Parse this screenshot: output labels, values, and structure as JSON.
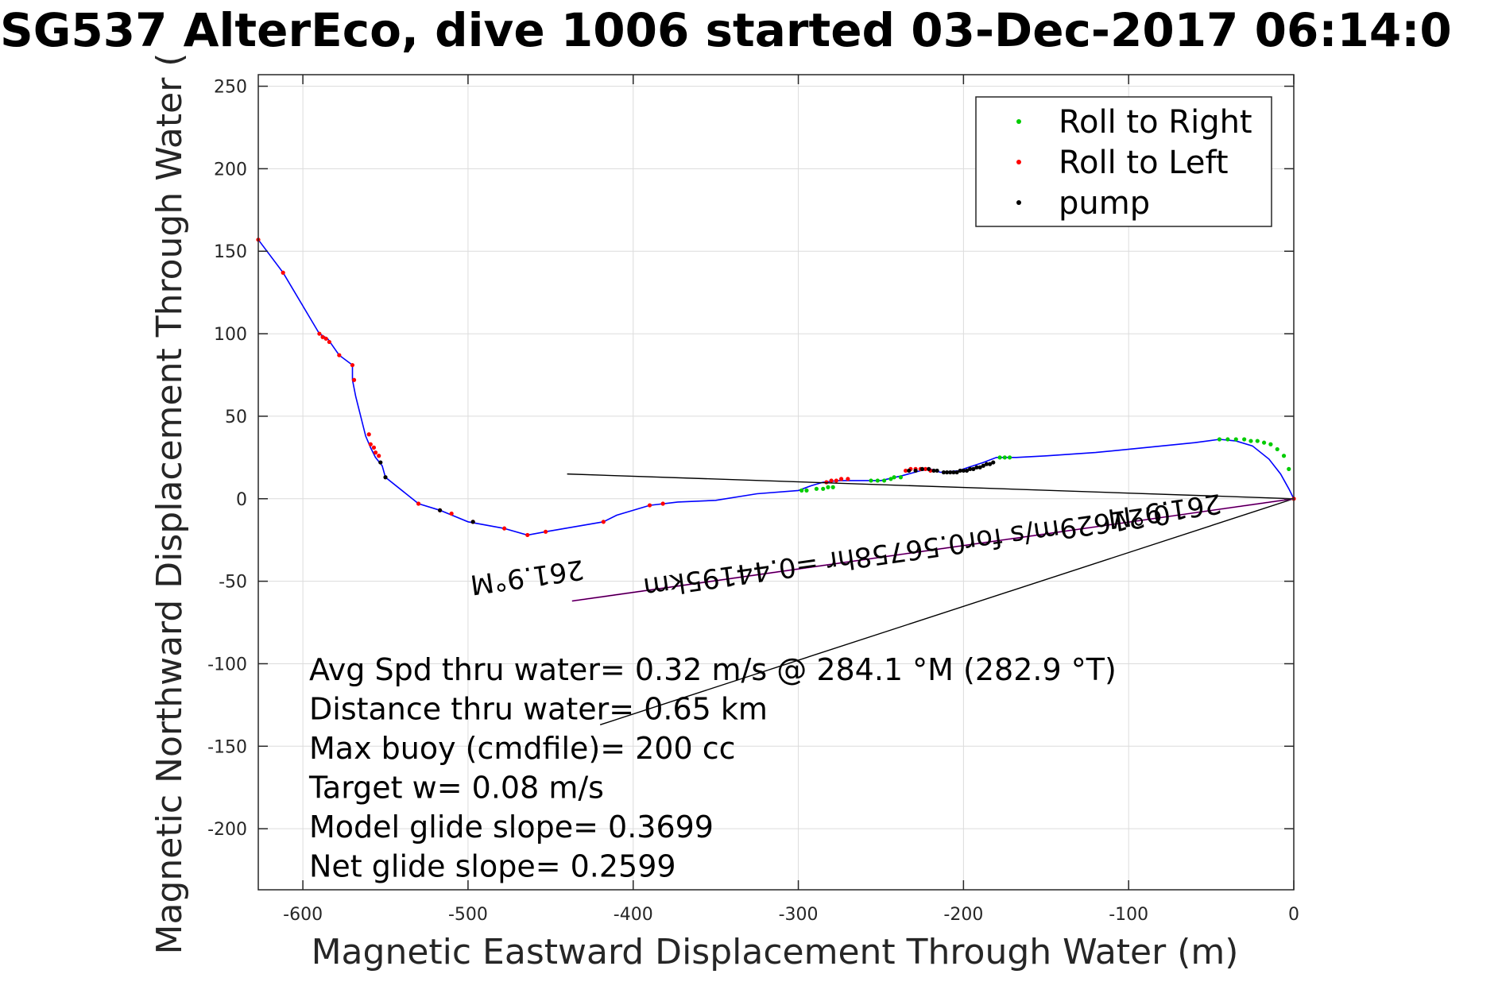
{
  "chart_data": {
    "type": "line",
    "title": "SG537 AlterEco, dive 1006 started 03-Dec-2017 06:14:0",
    "xlabel": "Magnetic Eastward Displacement Through Water (m)",
    "ylabel": "Magnetic Northward Displacement Through Water (",
    "xlim": [
      -627,
      0
    ],
    "ylim": [
      -237,
      257
    ],
    "xticks": [
      -600,
      -500,
      -400,
      -300,
      -200,
      -100,
      0
    ],
    "yticks": [
      250,
      200,
      150,
      100,
      50,
      0,
      -50,
      -100,
      -150,
      -200
    ],
    "grid": true,
    "legend_position": "top-right",
    "colors": {
      "track": "#0000ff",
      "right": "#00cc00",
      "left": "#ff0000",
      "pump": "#000000",
      "heading": "#cc00cc",
      "black": "#000000"
    },
    "legend": [
      {
        "label": "Roll to Right",
        "color": "#00cc00"
      },
      {
        "label": "Roll to Left",
        "color": "#ff0000"
      },
      {
        "label": "pump",
        "color": "#000000"
      }
    ],
    "track": {
      "x": [
        -627,
        -612,
        -590,
        -585,
        -578,
        -570,
        -570,
        -568,
        -562,
        -559,
        -556,
        -552,
        -550,
        -530,
        -517,
        -500,
        -478,
        -464,
        -453,
        -418,
        -410,
        -390,
        -373,
        -350,
        -325,
        -300,
        -292,
        -285,
        -275,
        -265,
        -250,
        -237,
        -226,
        -220,
        -214,
        -203,
        -197,
        -188,
        -180,
        -168,
        -150,
        -120,
        -90,
        -60,
        -45,
        -35,
        -25,
        -15,
        -8,
        -3,
        0
      ],
      "y": [
        157,
        137,
        100,
        97,
        87,
        81,
        72,
        62,
        38,
        31,
        25,
        20,
        13,
        -3,
        -7,
        -14,
        -18,
        -22,
        -20,
        -14,
        -10,
        -4,
        -2,
        -1,
        3,
        5,
        8,
        10,
        11,
        11,
        11,
        14,
        17,
        18,
        16,
        17,
        19,
        22,
        25,
        25,
        26,
        28,
        31,
        34,
        36,
        35,
        32,
        24,
        15,
        6,
        0
      ]
    },
    "roll_right": {
      "x": [
        -298,
        -295,
        -289,
        -285,
        -282,
        -279,
        -256,
        -252,
        -248,
        -244,
        -242,
        -238,
        -178,
        -175,
        -172,
        -45,
        -40,
        -35,
        -30,
        -26,
        -22,
        -18,
        -14,
        -10,
        -6,
        -3
      ],
      "y": [
        5,
        5,
        6,
        6,
        7,
        7,
        11,
        11,
        11,
        12,
        13,
        13,
        25,
        25,
        25,
        36,
        36,
        36,
        36,
        35,
        35,
        34,
        33,
        30,
        26,
        18
      ]
    },
    "roll_left": {
      "x": [
        -627,
        -612,
        -590,
        -588,
        -586,
        -584,
        -578,
        -570,
        -569,
        -560,
        -559,
        -557,
        -556,
        -554,
        -530,
        -517,
        -510,
        -497,
        -478,
        -464,
        -453,
        -418,
        -390,
        -382,
        -283,
        -280,
        -277,
        -274,
        -270,
        -235,
        -232,
        -229,
        -226,
        -223,
        -220,
        0
      ],
      "y": [
        157,
        137,
        100,
        98,
        97,
        95,
        87,
        81,
        72,
        39,
        33,
        31,
        28,
        26,
        -3,
        -7,
        -9,
        -14,
        -18,
        -22,
        -20,
        -14,
        -4,
        -3,
        10,
        11,
        11,
        12,
        12,
        17,
        18,
        18,
        18,
        18,
        17,
        0
      ]
    },
    "pump": {
      "x": [
        -553,
        -550,
        -517,
        -497,
        -233,
        -229,
        -225,
        -221,
        -218,
        -216,
        -212,
        -210,
        -208,
        -206,
        -204,
        -202,
        -200,
        -198,
        -196,
        -194,
        -192,
        -190,
        -188,
        -186,
        -184,
        -182
      ],
      "y": [
        22,
        13,
        -7,
        -14,
        17,
        17,
        18,
        18,
        17,
        17,
        16,
        16,
        16,
        16,
        16,
        17,
        17,
        17,
        18,
        18,
        19,
        19,
        20,
        21,
        21,
        22
      ]
    },
    "heading_line": {
      "x": [
        0,
        -437
      ],
      "y": [
        0,
        -62
      ]
    },
    "current_line": {
      "x": [
        0,
        -440
      ],
      "y": [
        0,
        15
      ]
    },
    "avg_line": {
      "x": [
        0,
        -420
      ],
      "y": [
        0,
        -137
      ]
    },
    "flipped_annotations": [
      {
        "text": "261.9°M",
        "x": -465,
        "y": -42
      },
      {
        "text": "0.21629m/s for0.56758hr =0.44195km",
        "x": -235,
        "y": -26
      },
      {
        "text": "261.9°M",
        "x": -79,
        "y": -2
      }
    ],
    "stats": [
      "Avg Spd thru water=  0.32 m/s @ 284.1 °M (282.9 °T)",
      "Distance thru water=  0.65 km",
      "Max buoy (cmdfile)= 200 cc",
      "Target w= 0.08 m/s",
      "Model glide slope= 0.3699",
      "Net glide slope= 0.2599"
    ]
  }
}
